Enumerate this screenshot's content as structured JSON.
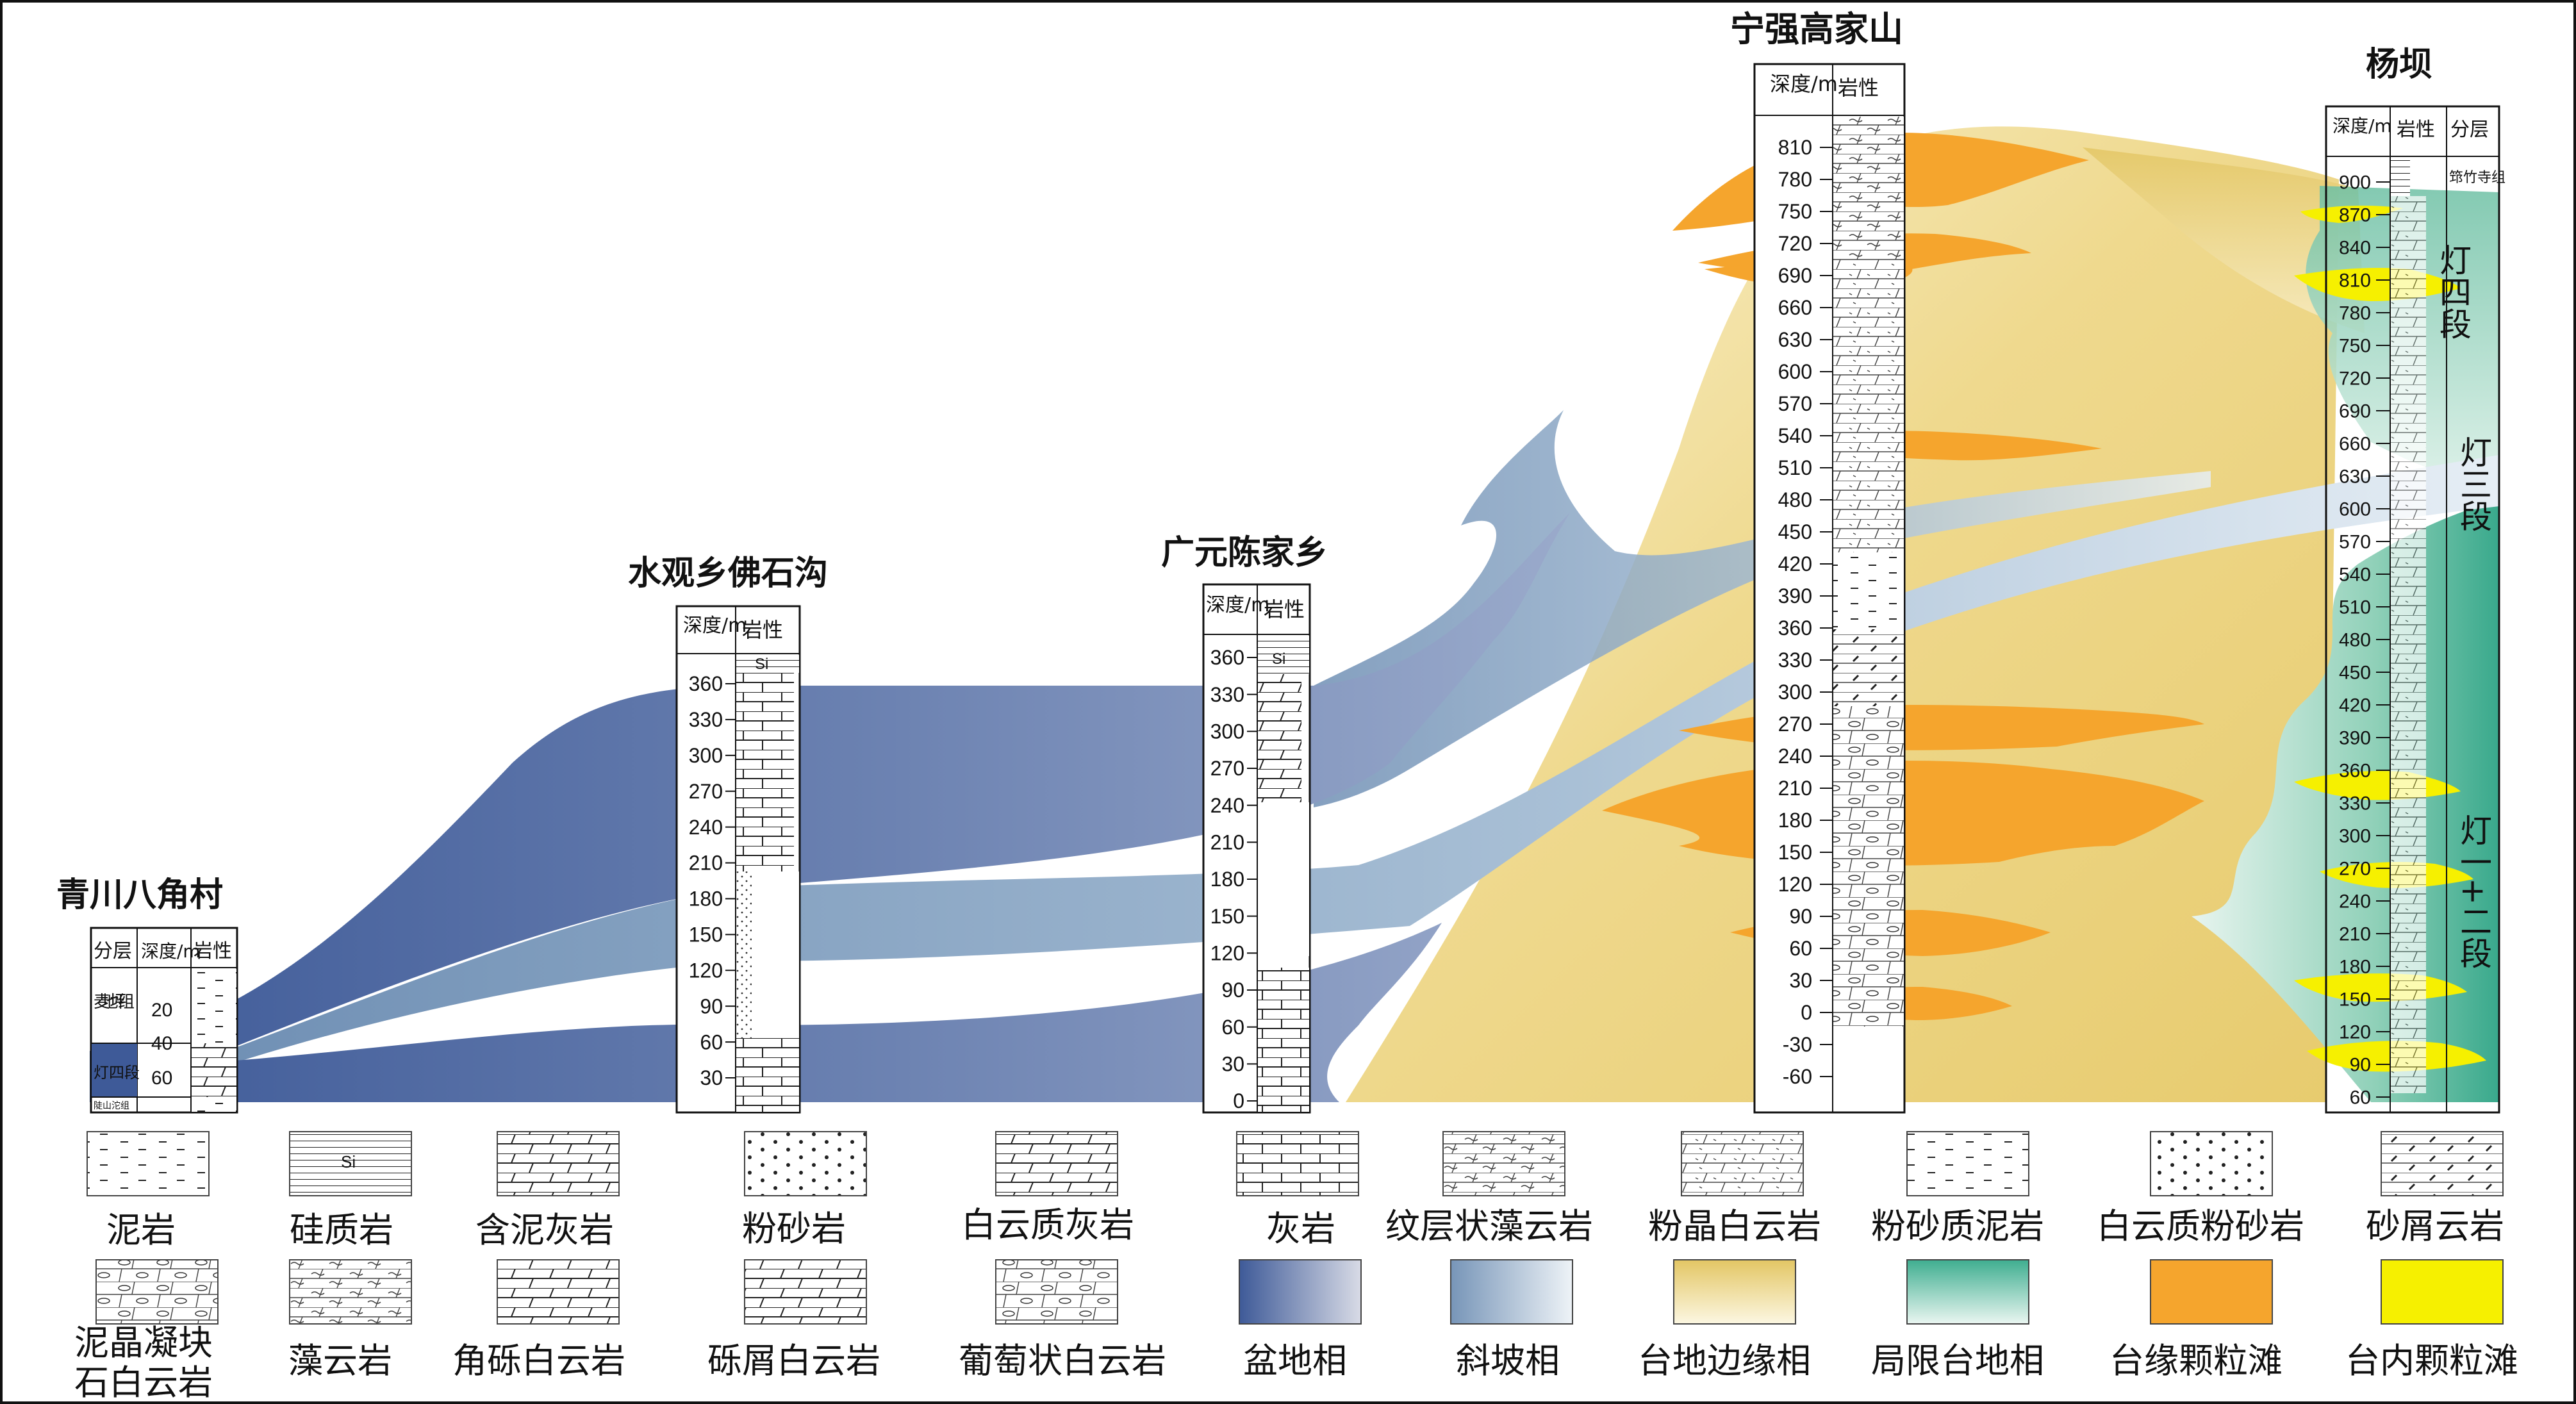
{
  "palette": {
    "basin_dark": "#3e5a98",
    "basin_light": "#c9cfe0",
    "slope_dark": "#6f8fb4",
    "slope_light": "#e2ebf2",
    "margin_dark": "#e3c664",
    "margin_light": "#fbf5dc",
    "restricted_dark": "#39a98c",
    "restricted_light": "#e6f4ee",
    "margin_shoal": "#f5a52d",
    "inner_shoal": "#f6f000"
  },
  "columns": {
    "qingchuan": {
      "title": "青川八角村",
      "headers": [
        "分层",
        "深度/m",
        "岩性"
      ],
      "ticks": [
        "20",
        "40",
        "60"
      ],
      "units": [
        "麦地坪组",
        "灯四段",
        "陡山沱组"
      ]
    },
    "shuiguan": {
      "title": "水观乡佛石沟",
      "headers": [
        "深度/m",
        "岩性"
      ],
      "ticks": [
        "360",
        "330",
        "300",
        "270",
        "240",
        "210",
        "180",
        "150",
        "120",
        "90",
        "60",
        "30"
      ],
      "si_label": "Si"
    },
    "guangyuan": {
      "title": "广元陈家乡",
      "headers": [
        "深度/m",
        "岩性"
      ],
      "ticks": [
        "360",
        "330",
        "300",
        "270",
        "240",
        "210",
        "180",
        "150",
        "120",
        "90",
        "60",
        "30",
        "0"
      ],
      "si_label": "Si"
    },
    "ningqiang": {
      "title": "宁强高家山",
      "headers": [
        "深度/m",
        "岩性"
      ],
      "ticks": [
        "810",
        "780",
        "750",
        "720",
        "690",
        "660",
        "630",
        "600",
        "570",
        "540",
        "510",
        "480",
        "450",
        "420",
        "390",
        "360",
        "330",
        "300",
        "270",
        "240",
        "210",
        "180",
        "150",
        "120",
        "90",
        "60",
        "30",
        "0",
        "-30",
        "-60"
      ]
    },
    "yangba": {
      "title": "杨坝",
      "headers": [
        "深度/m",
        "岩性",
        "分层"
      ],
      "ticks": [
        "900",
        "870",
        "840",
        "810",
        "780",
        "750",
        "720",
        "690",
        "660",
        "630",
        "600",
        "570",
        "540",
        "510",
        "480",
        "450",
        "420",
        "390",
        "360",
        "330",
        "300",
        "270",
        "240",
        "210",
        "180",
        "150",
        "120",
        "90",
        "60"
      ],
      "units": [
        "筇竹寺组",
        "灯四段",
        "灯三段",
        "灯一+二段"
      ]
    }
  },
  "legend": {
    "row1": [
      "泥岩",
      "硅质岩",
      "含泥灰岩",
      "粉砂岩",
      "白云质灰岩",
      "灰岩",
      "纹层状藻云岩",
      "粉晶白云岩",
      "粉砂质泥岩",
      "白云质粉砂岩",
      "砂屑云岩"
    ],
    "row2": [
      "泥晶凝块石白云岩",
      "藻云岩",
      "角砾白云岩",
      "砾屑白云岩",
      "葡萄状白云岩",
      "盆地相",
      "斜坡相",
      "台地边缘相",
      "局限台地相",
      "台缘颗粒滩",
      "台内颗粒滩"
    ],
    "si_label": "Si"
  }
}
